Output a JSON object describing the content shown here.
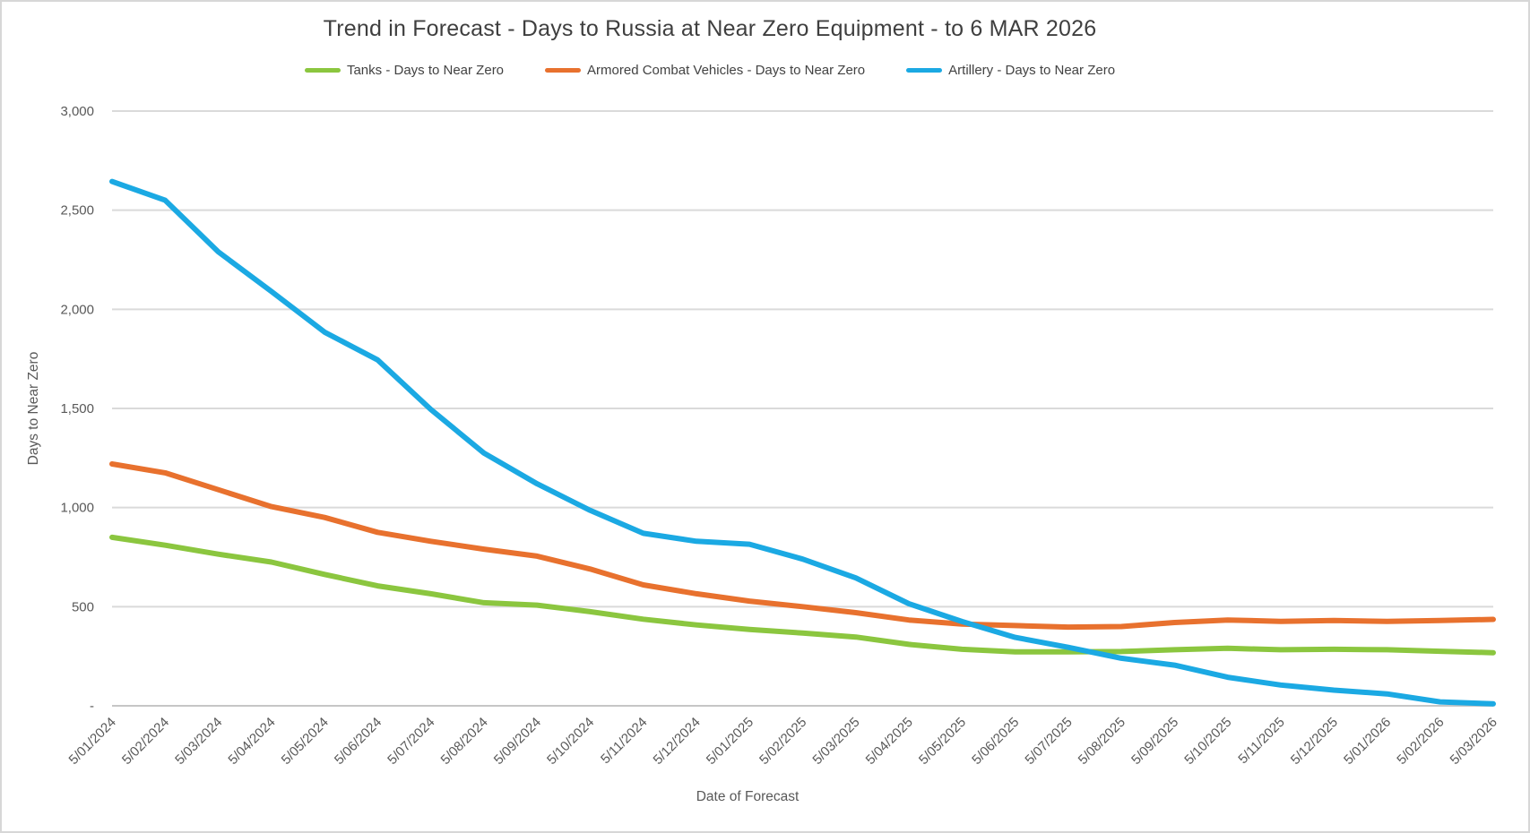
{
  "title": "Trend in Forecast - Days to Russia at Near Zero Equipment - to 6 MAR 2026",
  "legend": [
    {
      "label": "Tanks - Days to Near Zero",
      "color": "#8bc63f"
    },
    {
      "label": "Armored Combat Vehicles - Days to Near Zero",
      "color": "#e8712e"
    },
    {
      "label": "Artillery - Days to Near Zero",
      "color": "#1ba9e3"
    }
  ],
  "colors": {
    "gridline": "#dadada",
    "axis_line": "#c6c6c6",
    "tick_text": "#595959",
    "title_text": "#3f3f3f"
  },
  "chart_data": {
    "type": "line",
    "title": "Trend in Forecast - Days to Russia at Near Zero Equipment - to 6 MAR 2026",
    "xlabel": "Date of Forecast",
    "ylabel": "Days to Near Zero",
    "ylim": [
      0,
      3000
    ],
    "ytick_interval": 500,
    "ytick_labels_top_to_bottom": [
      "3,000",
      "2,500",
      "2,000",
      "1,500",
      "1,000",
      "500",
      "-"
    ],
    "grid": true,
    "legend_position": "top",
    "categories": [
      "5/01/2024",
      "5/02/2024",
      "5/03/2024",
      "5/04/2024",
      "5/05/2024",
      "5/06/2024",
      "5/07/2024",
      "5/08/2024",
      "5/09/2024",
      "5/10/2024",
      "5/11/2024",
      "5/12/2024",
      "5/01/2025",
      "5/02/2025",
      "5/03/2025",
      "5/04/2025",
      "5/05/2025",
      "5/06/2025",
      "5/07/2025",
      "5/08/2025",
      "5/09/2025",
      "5/10/2025",
      "5/11/2025",
      "5/12/2025",
      "5/01/2026",
      "5/02/2026",
      "5/03/2026"
    ],
    "series": [
      {
        "name": "Tanks - Days to Near Zero",
        "color": "#8bc63f",
        "values": [
          850,
          810,
          765,
          725,
          663,
          605,
          565,
          520,
          508,
          475,
          437,
          408,
          385,
          367,
          347,
          310,
          285,
          272,
          272,
          274,
          283,
          290,
          283,
          285,
          283,
          275,
          268
        ]
      },
      {
        "name": "Armored Combat Vehicles - Days to Near Zero",
        "color": "#e8712e",
        "values": [
          1220,
          1175,
          1090,
          1005,
          950,
          875,
          830,
          790,
          755,
          690,
          610,
          565,
          528,
          500,
          470,
          433,
          412,
          405,
          397,
          400,
          420,
          433,
          426,
          430,
          426,
          430,
          436
        ]
      },
      {
        "name": "Artillery - Days to Near Zero",
        "color": "#1ba9e3",
        "values": [
          2645,
          2550,
          2290,
          2090,
          1885,
          1745,
          1495,
          1275,
          1120,
          986,
          870,
          830,
          815,
          740,
          645,
          515,
          425,
          345,
          295,
          240,
          205,
          144,
          105,
          79,
          60,
          20,
          10
        ]
      }
    ]
  }
}
